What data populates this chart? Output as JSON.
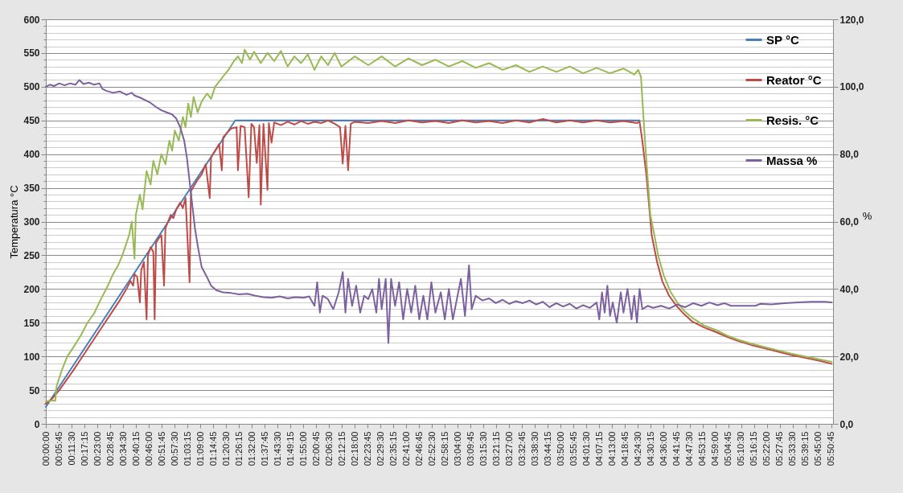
{
  "chart_data": {
    "type": "line",
    "ylabel": "Temperatura °C",
    "y2label": "%",
    "grid": "y",
    "legend": "top right",
    "marker": "none",
    "line_style": "solid",
    "xlim": [
      0,
      5.86
    ],
    "ylim": [
      0,
      600
    ],
    "y2lim": [
      0,
      120
    ],
    "xticks": [
      {
        "value": 0,
        "label": "00:00:00"
      },
      {
        "value": 0.0958,
        "label": "00:05:45"
      },
      {
        "value": 0.1917,
        "label": "00:11:30"
      },
      {
        "value": 0.2875,
        "label": "00:17:15"
      },
      {
        "value": 0.3833,
        "label": "00:23:00"
      },
      {
        "value": 0.4792,
        "label": "00:28:45"
      },
      {
        "value": 0.575,
        "label": "00:34:30"
      },
      {
        "value": 0.6708,
        "label": "00:40:15"
      },
      {
        "value": 0.7667,
        "label": "00:46:00"
      },
      {
        "value": 0.8625,
        "label": "00:51:45"
      },
      {
        "value": 0.9583,
        "label": "00:57:30"
      },
      {
        "value": 1.0542,
        "label": "01:03:15"
      },
      {
        "value": 1.15,
        "label": "01:09:00"
      },
      {
        "value": 1.2458,
        "label": "01:14:45"
      },
      {
        "value": 1.3417,
        "label": "01:20:30"
      },
      {
        "value": 1.4375,
        "label": "01:26:15"
      },
      {
        "value": 1.5333,
        "label": "01:32:00"
      },
      {
        "value": 1.6292,
        "label": "01:37:45"
      },
      {
        "value": 1.725,
        "label": "01:43:30"
      },
      {
        "value": 1.8208,
        "label": "01:49:15"
      },
      {
        "value": 1.9167,
        "label": "01:55:00"
      },
      {
        "value": 2.0125,
        "label": "02:00:45"
      },
      {
        "value": 2.1083,
        "label": "02:06:30"
      },
      {
        "value": 2.2042,
        "label": "02:12:15"
      },
      {
        "value": 2.3,
        "label": "02:18:00"
      },
      {
        "value": 2.3958,
        "label": "02:23:45"
      },
      {
        "value": 2.4917,
        "label": "02:29:30"
      },
      {
        "value": 2.5875,
        "label": "02:35:15"
      },
      {
        "value": 2.6833,
        "label": "02:41:00"
      },
      {
        "value": 2.7792,
        "label": "02:46:45"
      },
      {
        "value": 2.875,
        "label": "02:52:30"
      },
      {
        "value": 2.9708,
        "label": "02:58:15"
      },
      {
        "value": 3.0667,
        "label": "03:04:00"
      },
      {
        "value": 3.1625,
        "label": "03:09:45"
      },
      {
        "value": 3.2583,
        "label": "03:15:30"
      },
      {
        "value": 3.3542,
        "label": "03:21:15"
      },
      {
        "value": 3.45,
        "label": "03:27:00"
      },
      {
        "value": 3.5458,
        "label": "03:32:45"
      },
      {
        "value": 3.6417,
        "label": "03:38:30"
      },
      {
        "value": 3.7375,
        "label": "03:44:15"
      },
      {
        "value": 3.8333,
        "label": "03:50:00"
      },
      {
        "value": 3.9292,
        "label": "03:55:45"
      },
      {
        "value": 4.025,
        "label": "04:01:30"
      },
      {
        "value": 4.1208,
        "label": "04:07:15"
      },
      {
        "value": 4.2167,
        "label": "04:13:00"
      },
      {
        "value": 4.3125,
        "label": "04:18:45"
      },
      {
        "value": 4.4083,
        "label": "04:24:30"
      },
      {
        "value": 4.5042,
        "label": "04:30:15"
      },
      {
        "value": 4.6,
        "label": "04:36:00"
      },
      {
        "value": 4.6958,
        "label": "04:41:45"
      },
      {
        "value": 4.7917,
        "label": "04:47:30"
      },
      {
        "value": 4.8875,
        "label": "04:53:15"
      },
      {
        "value": 4.9833,
        "label": "04:59:00"
      },
      {
        "value": 5.0792,
        "label": "05:04:45"
      },
      {
        "value": 5.175,
        "label": "05:10:30"
      },
      {
        "value": 5.2708,
        "label": "05:16:15"
      },
      {
        "value": 5.3667,
        "label": "05:22:00"
      },
      {
        "value": 5.4625,
        "label": "05:27:45"
      },
      {
        "value": 5.5583,
        "label": "05:33:30"
      },
      {
        "value": 5.6542,
        "label": "05:39:15"
      },
      {
        "value": 5.75,
        "label": "05:45:00"
      },
      {
        "value": 5.8458,
        "label": "05:50:45"
      }
    ],
    "yticks": [
      0,
      {
        "value": 10,
        "label": null
      },
      {
        "value": 20,
        "label": null
      },
      {
        "value": 30,
        "label": null
      },
      {
        "value": 40,
        "label": null
      },
      50,
      {
        "value": 60,
        "label": null
      },
      {
        "value": 70,
        "label": null
      },
      {
        "value": 80,
        "label": null
      },
      {
        "value": 90,
        "label": null
      },
      100,
      {
        "value": 110,
        "label": null
      },
      {
        "value": 120,
        "label": null
      },
      {
        "value": 130,
        "label": null
      },
      {
        "value": 140,
        "label": null
      },
      150,
      {
        "value": 160,
        "label": null
      },
      {
        "value": 170,
        "label": null
      },
      {
        "value": 180,
        "label": null
      },
      {
        "value": 190,
        "label": null
      },
      200,
      {
        "value": 210,
        "label": null
      },
      {
        "value": 220,
        "label": null
      },
      {
        "value": 230,
        "label": null
      },
      {
        "value": 240,
        "label": null
      },
      250,
      {
        "value": 260,
        "label": null
      },
      {
        "value": 270,
        "label": null
      },
      {
        "value": 280,
        "label": null
      },
      {
        "value": 290,
        "label": null
      },
      300,
      {
        "value": 310,
        "label": null
      },
      {
        "value": 320,
        "label": null
      },
      {
        "value": 330,
        "label": null
      },
      {
        "value": 340,
        "label": null
      },
      350,
      {
        "value": 360,
        "label": null
      },
      {
        "value": 370,
        "label": null
      },
      {
        "value": 380,
        "label": null
      },
      {
        "value": 390,
        "label": null
      },
      400,
      {
        "value": 410,
        "label": null
      },
      {
        "value": 420,
        "label": null
      },
      {
        "value": 430,
        "label": null
      },
      {
        "value": 440,
        "label": null
      },
      450,
      {
        "value": 460,
        "label": null
      },
      {
        "value": 470,
        "label": null
      },
      {
        "value": 480,
        "label": null
      },
      {
        "value": 490,
        "label": null
      },
      500,
      {
        "value": 510,
        "label": null
      },
      {
        "value": 520,
        "label": null
      },
      {
        "value": 530,
        "label": null
      },
      {
        "value": 540,
        "label": null
      },
      550,
      {
        "value": 560,
        "label": null
      },
      {
        "value": 570,
        "label": null
      },
      {
        "value": 580,
        "label": null
      },
      {
        "value": 590,
        "label": null
      },
      600
    ],
    "y2ticks": [
      {
        "value": 0,
        "label": "0,0"
      },
      {
        "value": 20,
        "label": "20,0"
      },
      {
        "value": 40,
        "label": "40,0"
      },
      {
        "value": 60,
        "label": "60,0"
      },
      {
        "value": 80,
        "label": "80,0"
      },
      {
        "value": 100,
        "label": "100,0"
      },
      {
        "value": 120,
        "label": "120,0"
      }
    ],
    "series": [
      {
        "name": "SP °C",
        "color": "#4a7ebb",
        "x": [
          0,
          1.41,
          4.42
        ],
        "values": [
          25,
          450,
          450
        ]
      },
      {
        "name": "Reator °C",
        "color": "#be4b48",
        "x": [
          0,
          0.05,
          0.1,
          0.2,
          0.3,
          0.4,
          0.5,
          0.55,
          0.6,
          0.63,
          0.65,
          0.66,
          0.68,
          0.7,
          0.71,
          0.73,
          0.75,
          0.76,
          0.78,
          0.8,
          0.81,
          0.82,
          0.84,
          0.86,
          0.88,
          0.89,
          0.91,
          0.93,
          0.95,
          0.97,
          1.0,
          1.02,
          1.04,
          1.07,
          1.08,
          1.1,
          1.13,
          1.16,
          1.19,
          1.22,
          1.23,
          1.26,
          1.29,
          1.31,
          1.32,
          1.35,
          1.38,
          1.42,
          1.43,
          1.45,
          1.48,
          1.51,
          1.53,
          1.55,
          1.57,
          1.59,
          1.6,
          1.62,
          1.65,
          1.66,
          1.68,
          1.7,
          1.75,
          1.8,
          1.85,
          1.9,
          1.95,
          2.0,
          2.05,
          2.1,
          2.15,
          2.19,
          2.21,
          2.23,
          2.25,
          2.27,
          2.3,
          2.4,
          2.5,
          2.6,
          2.7,
          2.8,
          2.9,
          3.0,
          3.1,
          3.2,
          3.3,
          3.4,
          3.5,
          3.6,
          3.7,
          3.8,
          3.9,
          4.0,
          4.1,
          4.2,
          4.3,
          4.4,
          4.42,
          4.44,
          4.47,
          4.51,
          4.55,
          4.59,
          4.64,
          4.69,
          4.75,
          4.81,
          4.9,
          4.99,
          5.07,
          5.15,
          5.25,
          5.35,
          5.45,
          5.55,
          5.65,
          5.75,
          5.85
        ],
        "values": [
          30,
          38,
          50,
          78,
          108,
          138,
          168,
          183,
          200,
          212,
          205,
          222,
          218,
          180,
          228,
          240,
          155,
          250,
          262,
          255,
          155,
          268,
          275,
          280,
          205,
          290,
          300,
          310,
          305,
          318,
          328,
          320,
          335,
          210,
          345,
          352,
          362,
          370,
          385,
          335,
          395,
          405,
          415,
          376,
          425,
          432,
          438,
          440,
          376,
          442,
          440,
          336,
          445,
          440,
          387,
          443,
          325,
          445,
          347,
          446,
          417,
          447,
          443,
          448,
          444,
          449,
          445,
          448,
          446,
          450,
          445,
          440,
          386,
          442,
          376,
          445,
          448,
          446,
          449,
          446,
          450,
          447,
          449,
          446,
          450,
          447,
          449,
          446,
          450,
          447,
          452,
          447,
          450,
          447,
          450,
          447,
          449,
          446,
          448,
          420,
          370,
          280,
          240,
          211,
          190,
          176,
          163,
          152,
          143,
          136,
          129,
          123,
          117,
          112,
          107,
          102,
          98,
          94,
          89
        ]
      },
      {
        "name": "Resis. °C",
        "color": "#98b954",
        "x": [
          0,
          0.05,
          0.07,
          0.08,
          0.12,
          0.16,
          0.2,
          0.26,
          0.31,
          0.36,
          0.41,
          0.46,
          0.5,
          0.54,
          0.57,
          0.6,
          0.62,
          0.64,
          0.66,
          0.67,
          0.7,
          0.72,
          0.75,
          0.78,
          0.8,
          0.83,
          0.86,
          0.89,
          0.92,
          0.94,
          0.96,
          0.99,
          1.02,
          1.04,
          1.06,
          1.08,
          1.1,
          1.13,
          1.16,
          1.2,
          1.23,
          1.26,
          1.3,
          1.33,
          1.36,
          1.4,
          1.43,
          1.46,
          1.48,
          1.52,
          1.55,
          1.6,
          1.65,
          1.7,
          1.75,
          1.8,
          1.85,
          1.9,
          1.95,
          2.0,
          2.05,
          2.1,
          2.15,
          2.2,
          2.3,
          2.4,
          2.5,
          2.6,
          2.7,
          2.8,
          2.9,
          3.0,
          3.1,
          3.2,
          3.3,
          3.4,
          3.5,
          3.6,
          3.7,
          3.8,
          3.9,
          4.0,
          4.1,
          4.2,
          4.3,
          4.38,
          4.41,
          4.43,
          4.46,
          4.5,
          4.53,
          4.56,
          4.6,
          4.65,
          4.7,
          4.76,
          4.82,
          4.9,
          4.99,
          5.07,
          5.15,
          5.25,
          5.35,
          5.45,
          5.55,
          5.65,
          5.75,
          5.85
        ],
        "values": [
          33,
          35,
          34,
          56,
          80,
          100,
          112,
          131,
          150,
          164,
          185,
          204,
          222,
          236,
          250,
          268,
          280,
          300,
          245,
          310,
          340,
          318,
          375,
          355,
          390,
          370,
          400,
          385,
          420,
          405,
          435,
          420,
          455,
          440,
          475,
          455,
          485,
          462,
          478,
          490,
          482,
          500,
          510,
          518,
          525,
          538,
          545,
          535,
          555,
          540,
          552,
          535,
          550,
          538,
          553,
          530,
          545,
          535,
          548,
          525,
          545,
          532,
          550,
          530,
          545,
          532,
          545,
          530,
          542,
          532,
          540,
          530,
          538,
          528,
          535,
          525,
          532,
          522,
          530,
          522,
          530,
          520,
          528,
          520,
          527,
          518,
          525,
          515,
          420,
          310,
          280,
          248,
          220,
          196,
          180,
          166,
          156,
          146,
          139,
          131,
          125,
          119,
          114,
          109,
          104,
          100,
          96,
          92
        ]
      },
      {
        "name": "Massa %",
        "color": "#7d60a0",
        "axis": "y2",
        "x": [
          0,
          0.03,
          0.06,
          0.1,
          0.14,
          0.18,
          0.22,
          0.25,
          0.28,
          0.32,
          0.36,
          0.4,
          0.42,
          0.45,
          0.5,
          0.55,
          0.6,
          0.64,
          0.66,
          0.7,
          0.75,
          0.78,
          0.82,
          0.86,
          0.9,
          0.94,
          0.97,
          1.0,
          1.03,
          1.05,
          1.07,
          1.09,
          1.11,
          1.13,
          1.16,
          1.2,
          1.23,
          1.27,
          1.32,
          1.38,
          1.44,
          1.5,
          1.56,
          1.62,
          1.68,
          1.74,
          1.8,
          1.86,
          1.92,
          1.96,
          2.0,
          2.02,
          2.04,
          2.06,
          2.1,
          2.14,
          2.18,
          2.21,
          2.23,
          2.25,
          2.28,
          2.31,
          2.34,
          2.37,
          2.4,
          2.43,
          2.46,
          2.48,
          2.5,
          2.53,
          2.55,
          2.57,
          2.6,
          2.63,
          2.66,
          2.69,
          2.72,
          2.75,
          2.78,
          2.81,
          2.84,
          2.87,
          2.9,
          2.94,
          2.97,
          3.0,
          3.03,
          3.06,
          3.09,
          3.12,
          3.15,
          3.17,
          3.2,
          3.25,
          3.3,
          3.35,
          3.4,
          3.45,
          3.5,
          3.55,
          3.6,
          3.65,
          3.7,
          3.75,
          3.8,
          3.85,
          3.9,
          3.95,
          4.0,
          4.05,
          4.1,
          4.12,
          4.14,
          4.16,
          4.18,
          4.2,
          4.22,
          4.25,
          4.28,
          4.3,
          4.33,
          4.36,
          4.38,
          4.4,
          4.42,
          4.44,
          4.48,
          4.52,
          4.58,
          4.64,
          4.7,
          4.76,
          4.82,
          4.88,
          4.94,
          5.0,
          5.05,
          5.1,
          5.2,
          5.28,
          5.32,
          5.4,
          5.5,
          5.6,
          5.7,
          5.8,
          5.85
        ],
        "values": [
          100,
          100.6,
          100.2,
          101,
          100.4,
          101,
          100.6,
          102,
          100.8,
          101.2,
          100.6,
          101,
          99.4,
          98.8,
          98.2,
          98.6,
          97.6,
          98.2,
          97.4,
          96.8,
          95.8,
          95.2,
          94,
          93,
          92.4,
          91.8,
          90.6,
          88,
          84,
          79,
          72,
          65,
          58,
          53,
          46.5,
          43.5,
          41,
          39.6,
          39,
          38.8,
          38.4,
          38.6,
          38,
          37.6,
          37.4,
          37.8,
          37.2,
          37.6,
          37.4,
          37.8,
          35,
          42,
          33,
          38,
          37,
          34,
          39,
          45,
          33,
          43,
          35,
          41,
          33,
          38,
          37,
          40,
          33,
          43,
          34,
          43,
          24,
          43,
          35,
          42,
          31,
          40,
          33,
          41,
          31,
          38,
          31,
          42,
          33,
          39,
          31,
          40,
          31,
          37,
          43,
          32,
          47,
          34,
          38,
          36.6,
          37.2,
          35.8,
          36.8,
          35.6,
          36.4,
          35.8,
          36.6,
          35.4,
          36.2,
          34.6,
          35.8,
          34.8,
          35.6,
          34.2,
          35.2,
          34.4,
          36,
          31,
          39,
          33,
          41,
          32,
          36,
          30,
          39,
          33,
          40,
          31,
          38,
          30,
          40,
          34,
          35,
          34.4,
          35,
          34.2,
          35.4,
          34.6,
          35.8,
          35,
          36,
          35.2,
          35.8,
          35,
          35,
          35,
          35.6,
          35.4,
          35.8,
          36,
          36.2,
          36.2,
          36
        ]
      }
    ]
  }
}
